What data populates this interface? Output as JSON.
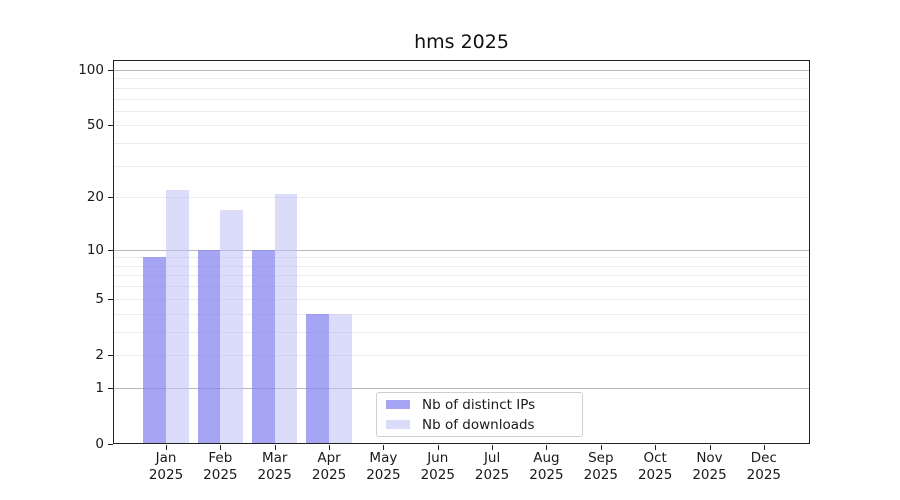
{
  "chart_data": {
    "type": "bar",
    "title": "hms 2025",
    "categories": [
      "Jan",
      "Feb",
      "Mar",
      "Apr",
      "May",
      "Jun",
      "Jul",
      "Aug",
      "Sep",
      "Oct",
      "Nov",
      "Dec"
    ],
    "category_year": "2025",
    "series": [
      {
        "name": "Nb of distinct IPs",
        "color": "#8282f0",
        "alpha": 0.72,
        "values": [
          9,
          10,
          10,
          4,
          0,
          0,
          0,
          0,
          0,
          0,
          0,
          0
        ]
      },
      {
        "name": "Nb of downloads",
        "color": "#bebef5",
        "alpha": 0.55,
        "values": [
          22,
          17,
          21,
          4,
          0,
          0,
          0,
          0,
          0,
          0,
          0,
          0
        ]
      }
    ],
    "yscale": "log1p",
    "ylim": [
      0,
      113
    ],
    "y_tick_labels": [
      0,
      1,
      2,
      5,
      10,
      20,
      50,
      100
    ],
    "y_major_gridlines": [
      1,
      10,
      100
    ],
    "y_minor_gridlines": [
      2,
      3,
      4,
      5,
      6,
      7,
      8,
      9,
      20,
      30,
      40,
      50,
      60,
      70,
      80,
      90
    ],
    "xlabel": "",
    "ylabel": "",
    "grid": true,
    "legend_position": "lower center",
    "colors": {
      "major_grid": "#b9b9b9",
      "minor_grid": "#ececec",
      "spine": "#222222",
      "text": "#1a1a1a",
      "background": "#ffffff"
    }
  }
}
